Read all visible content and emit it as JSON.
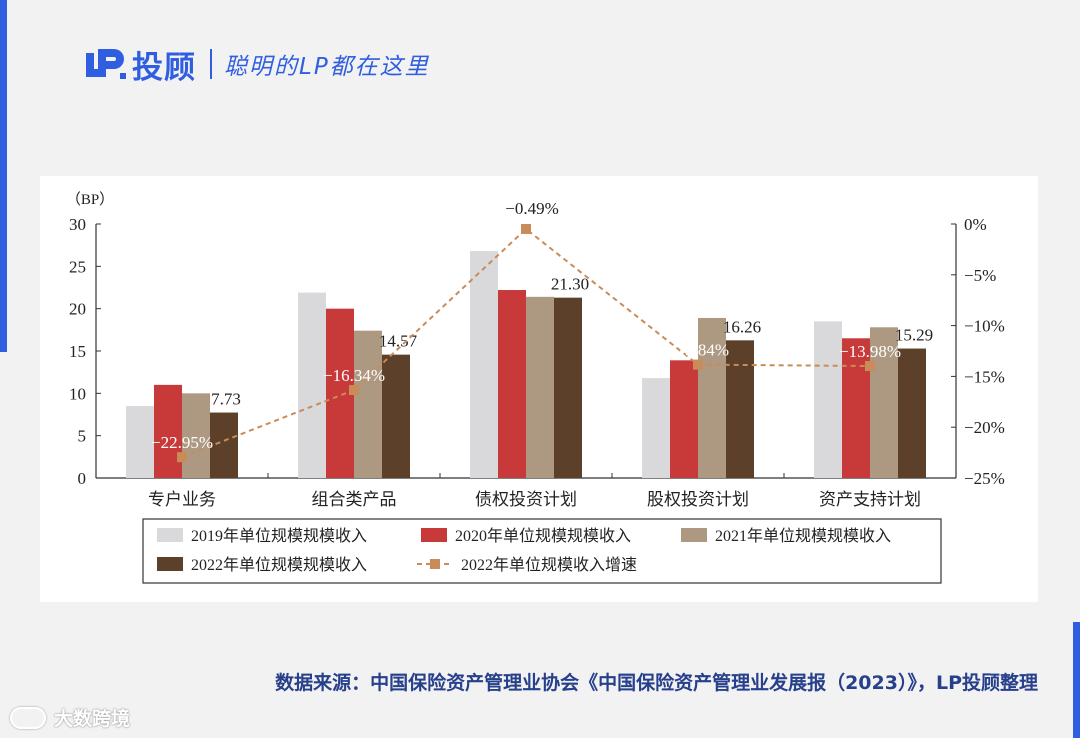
{
  "header": {
    "brand_name": "投顾",
    "slogan": "聪明的LP都在这里",
    "logo_icon": "lp-logo-icon",
    "brand_color": "#2f5fe0"
  },
  "source_note": "数据来源：中国保险资产管理业协会《中国保险资产管理业发展报（2023）》，LP投顾整理",
  "watermark": "大数跨境",
  "chart_data": {
    "type": "bar",
    "categories": [
      "专户业务",
      "组合类产品",
      "债权投资计划",
      "股权投资计划",
      "资产支持计划"
    ],
    "left_axis": {
      "unit_label": "（BP）",
      "ylim": [
        0,
        30
      ],
      "ticks": [
        "0",
        "5",
        "10",
        "15",
        "20",
        "25",
        "30"
      ]
    },
    "right_axis": {
      "ylim": [
        -25,
        0
      ],
      "ticks": [
        "-25%",
        "-20%",
        "-15%",
        "-10%",
        "-5%",
        "0%"
      ]
    },
    "series": [
      {
        "name": "2019年单位规模规模收入",
        "color": "#d9d9db",
        "values": [
          8.5,
          21.9,
          26.8,
          11.8,
          18.5
        ]
      },
      {
        "name": "2020年单位规模规模收入",
        "color": "#c8393a",
        "values": [
          11.0,
          20.0,
          22.2,
          13.9,
          16.5
        ]
      },
      {
        "name": "2021年单位规模规模收入",
        "color": "#ad9982",
        "values": [
          10.0,
          17.4,
          21.4,
          18.9,
          17.8
        ]
      },
      {
        "name": "2022年单位规模规模收入",
        "color": "#5c4029",
        "values": [
          7.73,
          14.57,
          21.3,
          16.26,
          15.29
        ],
        "labels": [
          "7.73",
          "14.57",
          "21.30",
          "16.26",
          "15.29"
        ]
      }
    ],
    "line_series": {
      "name": "2022年单位规模收入增速",
      "color": "#c98c58",
      "values": [
        -22.95,
        -16.34,
        -0.49,
        -13.84,
        -13.98
      ],
      "labels": [
        "-22.95%",
        "-16.34%",
        "-0.49%",
        "-13.84%",
        "-13.98%"
      ]
    },
    "legend_position": "bottom",
    "grid": false
  }
}
